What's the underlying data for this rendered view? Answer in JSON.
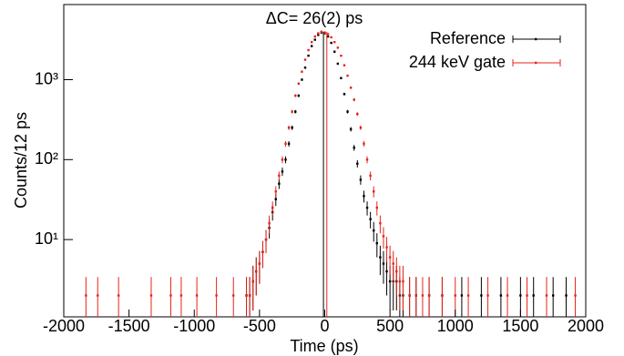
{
  "chart_data": {
    "type": "scatter",
    "annotation": "ΔC= 26(2) ps",
    "xlabel": "Time (ps)",
    "ylabel": "Counts/12 ps",
    "xlim": [
      -2000,
      2000
    ],
    "xticks": [
      -2000,
      -1500,
      -1000,
      -500,
      0,
      500,
      1000,
      1500,
      2000
    ],
    "ylim": [
      1.08,
      8700
    ],
    "log_y": true,
    "yticks": [
      {
        "value": 10,
        "label": "10¹"
      },
      {
        "value": 100,
        "label": "10²"
      },
      {
        "value": 1000,
        "label": "10³"
      }
    ],
    "legend": "upper right",
    "series": [
      {
        "name": "Reference",
        "color": "#000000",
        "centroid": -10,
        "x": [
          -600,
          -575,
          -550,
          -525,
          -500,
          -475,
          -450,
          -425,
          -400,
          -375,
          -350,
          -325,
          -300,
          -275,
          -250,
          -225,
          -200,
          -175,
          -150,
          -125,
          -100,
          -75,
          -50,
          -25,
          0,
          25,
          50,
          75,
          100,
          125,
          150,
          175,
          200,
          225,
          250,
          275,
          300,
          325,
          350,
          375,
          400,
          425,
          450,
          475,
          500,
          525,
          550,
          575,
          600,
          650,
          700,
          800,
          900,
          1050,
          1200,
          1350,
          1500,
          1600,
          1750,
          1850
        ],
        "values": [
          2,
          2,
          3,
          4,
          5,
          7,
          10,
          14,
          22,
          32,
          50,
          71,
          100,
          158,
          251,
          398,
          631,
          1000,
          1413,
          1995,
          2630,
          3162,
          3631,
          3890,
          3802,
          3467,
          2884,
          2239,
          1585,
          1047,
          661,
          398,
          240,
          141,
          89,
          56,
          35,
          25,
          18,
          13,
          9,
          6,
          5,
          4,
          3,
          3,
          3,
          2,
          2,
          2,
          2,
          2,
          2,
          2,
          2,
          2,
          2,
          2,
          2,
          2
        ],
        "errors": [
          1.4,
          1.4,
          1.7,
          2,
          2.2,
          2.6,
          3.2,
          3.7,
          4.7,
          5.7,
          7.1,
          8.4,
          10,
          12.6,
          15.8,
          19.9,
          25.1,
          31.6,
          37.6,
          44.7,
          51.3,
          56.2,
          60.3,
          62.4,
          61.7,
          58.9,
          53.7,
          47.3,
          39.8,
          32.4,
          25.7,
          19.9,
          15.5,
          11.9,
          9.4,
          7.5,
          5.9,
          5,
          4.2,
          3.6,
          3,
          2.4,
          2.2,
          2,
          1.7,
          1.7,
          1.7,
          1.4,
          1.4,
          1.4,
          1.4,
          1.4,
          1.4,
          1.4,
          1.4,
          1.4,
          1.4,
          1.4,
          1.4,
          1.4
        ]
      },
      {
        "name": "244 keV gate",
        "color": "#e8231b",
        "centroid": 16,
        "x": [
          -1830,
          -1740,
          -1580,
          -1330,
          -1180,
          -1100,
          -980,
          -830,
          -700,
          -600,
          -575,
          -550,
          -525,
          -500,
          -475,
          -450,
          -425,
          -400,
          -375,
          -350,
          -325,
          -300,
          -275,
          -250,
          -225,
          -200,
          -175,
          -150,
          -125,
          -100,
          -75,
          -50,
          -25,
          0,
          25,
          50,
          75,
          100,
          125,
          150,
          175,
          200,
          225,
          250,
          275,
          300,
          325,
          350,
          375,
          400,
          425,
          450,
          475,
          500,
          525,
          550,
          575,
          600,
          650,
          700,
          750,
          800,
          900,
          1000,
          1100,
          1250,
          1400,
          1550,
          1700,
          1920
        ],
        "values": [
          2,
          2,
          2,
          2,
          2,
          2,
          2,
          2,
          2,
          2,
          2,
          3,
          4,
          5,
          7,
          10,
          16,
          25,
          40,
          63,
          100,
          158,
          251,
          398,
          631,
          891,
          1259,
          1778,
          2344,
          2951,
          3467,
          3802,
          3981,
          3890,
          3715,
          3388,
          2951,
          2512,
          1995,
          1514,
          1122,
          794,
          562,
          372,
          251,
          158,
          100,
          63,
          40,
          25,
          16,
          11,
          8,
          6,
          5,
          4,
          3,
          3,
          2,
          2,
          2,
          2,
          2,
          2,
          2,
          2,
          2,
          2,
          2,
          2
        ],
        "errors": [
          1.4,
          1.4,
          1.4,
          1.4,
          1.4,
          1.4,
          1.4,
          1.4,
          1.4,
          1.4,
          1.4,
          1.7,
          2,
          2.2,
          2.6,
          3.2,
          4,
          5,
          6.3,
          7.9,
          10,
          12.6,
          15.8,
          19.9,
          25.1,
          29.8,
          35.5,
          42.2,
          48.4,
          54.3,
          58.9,
          61.7,
          63.1,
          62.4,
          61,
          58.2,
          54.3,
          50.1,
          44.7,
          38.9,
          33.5,
          28.2,
          23.7,
          19.3,
          15.8,
          12.6,
          10,
          7.9,
          6.3,
          5,
          4,
          3.3,
          2.8,
          2.4,
          2.2,
          2,
          1.7,
          1.7,
          1.4,
          1.4,
          1.4,
          1.4,
          1.4,
          1.4,
          1.4,
          1.4,
          1.4,
          1.4,
          1.4,
          1.4
        ]
      }
    ]
  }
}
